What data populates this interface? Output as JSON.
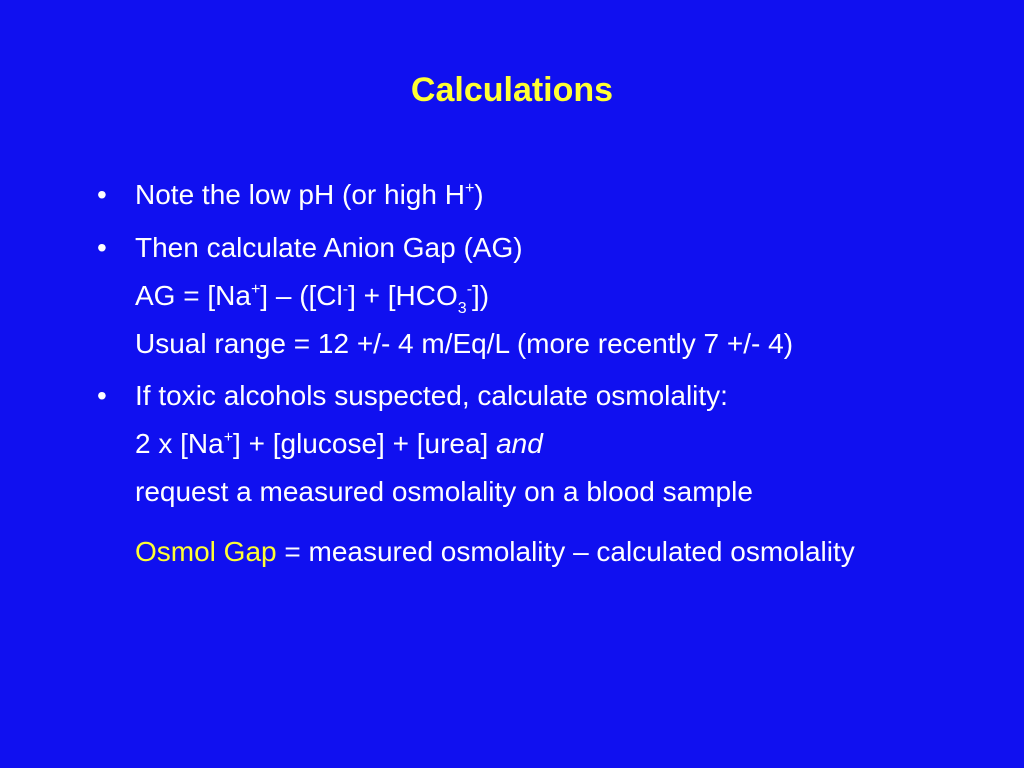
{
  "slide": {
    "title": "Calculations",
    "bullet_char": "•",
    "b1": {
      "text": "Note the low pH (or high H",
      "sup": "+",
      "after": ")"
    },
    "b2": {
      "prefix": "Then calculate ",
      "emphasis": "Anion Gap",
      "suffix": " (AG)",
      "formula": {
        "t1": "AG = [Na",
        "sup1": "+",
        "t2": "] – ([Cl",
        "sup2": "-",
        "t3": "] + [HCO",
        "sub3": "3",
        "sup3": "-",
        "t4": "])"
      },
      "range": "Usual range = 12 +/- 4 m/Eq/L (more recently 7 +/- 4)"
    },
    "b3": {
      "text": "If toxic alcohols suspected, calculate osmolality:",
      "formula": {
        "t1": "2 x [Na",
        "sup1": "+",
        "t2": "] + [glucose] + [urea] ",
        "italic": "and"
      },
      "request": "request a measured osmolality on a blood sample",
      "gap_label": "Osmol Gap",
      "gap_def": " = measured osmolality – calculated osmolality"
    }
  }
}
